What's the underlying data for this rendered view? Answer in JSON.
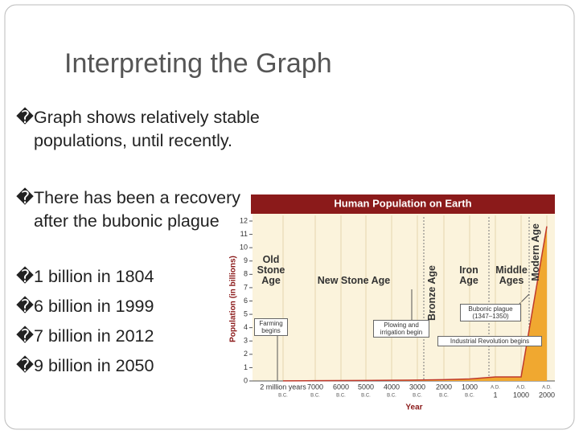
{
  "slide": {
    "title": "Interpreting the Graph",
    "bullet_marker": "�",
    "bullets": [
      "Graph shows relatively stable populations, until recently.",
      "There has been a recovery after the bubonic plague",
      "1 billion in 1804",
      "6 billion in 1999",
      "7 billion in 2012",
      "9 billion in 2050"
    ]
  },
  "chart_data": {
    "type": "area",
    "title": "Human Population on Earth",
    "y_label": "Population (in billions)",
    "x_label": "Year",
    "categories": [
      "2 million years",
      "7000",
      "6000",
      "5000",
      "4000",
      "3000",
      "2000",
      "1000",
      "1",
      "1000",
      "2000"
    ],
    "category_eras": [
      "B.C.",
      "B.C.",
      "B.C.",
      "B.C.",
      "B.C.",
      "B.C.",
      "B.C.",
      "B.C.",
      "A.D.",
      "A.D.",
      "A.D."
    ],
    "values": [
      0.01,
      0.02,
      0.03,
      0.04,
      0.05,
      0.07,
      0.1,
      0.15,
      0.3,
      0.3,
      11.6
    ],
    "ylim": [
      0,
      12
    ],
    "yticks": [
      0,
      1,
      2,
      3,
      4,
      5,
      6,
      7,
      8,
      9,
      10,
      11,
      12
    ],
    "color": "#f0a830",
    "line_color": "#c0392b",
    "eras": [
      "Old Stone Age",
      "New Stone Age",
      "Bronze Age",
      "Iron Age",
      "Middle Ages",
      "Modern Age"
    ],
    "annotations": [
      "Farming begins",
      "Plowing and irrigation begin",
      "Bubonic plague (1347–1350)",
      "Industrial Revolution begins"
    ]
  }
}
